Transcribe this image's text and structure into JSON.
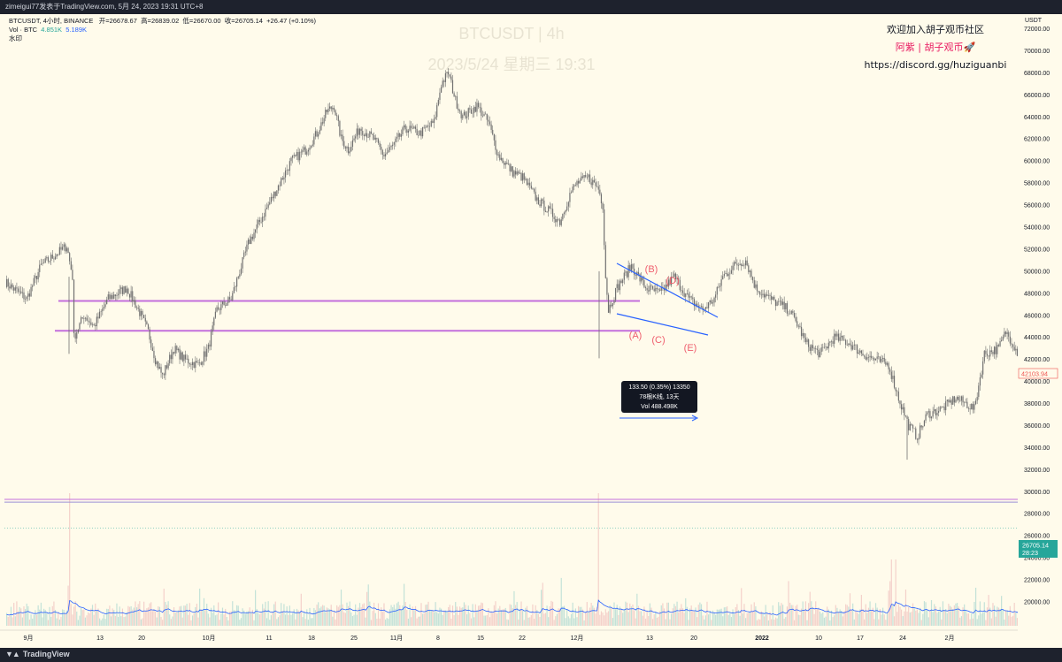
{
  "header": {
    "author_line": "zimeigui77发表于TradingView.com,   5月 24, 2023 19:31 UTC+8"
  },
  "footer": {
    "brand": "TradingView"
  },
  "legend": {
    "symbol_line": "BTCUSDT, 4小时, BINANCE",
    "open_label": "开=",
    "open": "26678.67",
    "high_label": "高=",
    "high": "26839.02",
    "low_label": "低=",
    "low": "26670.00",
    "close_label": "收=",
    "close": "26705.14",
    "change": "+26.47 (+0.10%)",
    "vol_label": "Vol · BTC",
    "vol_a": "4.851K",
    "vol_b": "5.189K",
    "watermark_label": "水印"
  },
  "watermark": {
    "line1": "BTCUSDT | 4h",
    "line2": "2023/5/24 星期三 19:31"
  },
  "promo": {
    "line1": "欢迎加入胡子观币社区",
    "line2": "阿紫 | 胡子观币🚀",
    "line3": "https://discord.gg/huziguanbi"
  },
  "annotations": [
    "(A)",
    "(B)",
    "(C)",
    "(D)",
    "(E)"
  ],
  "tooltip": {
    "line1": "133.50 (0.35%) 13350",
    "line2": "78根K线, 13天",
    "line3": "Vol 488.498K"
  },
  "price_tags": {
    "marked": "42103.94",
    "last": "26705.14",
    "countdown": "28:23"
  },
  "colors": {
    "background": "#fffbeb",
    "candles": "#707070",
    "level_lines": "#c36fdc",
    "wedge_lines": "#2962ff",
    "wave_labels": "#ef5f6e",
    "volume_ma": "#2962ff",
    "last_price": "#26a69a",
    "marked_price": "#ef5350"
  },
  "chart_data": {
    "type": "candlestick",
    "currency": "USDT",
    "y_range": [
      19500,
      73500
    ],
    "y_ticks": [
      72000,
      70000,
      68000,
      66000,
      64000,
      62000,
      60000,
      58000,
      56000,
      54000,
      52000,
      50000,
      48000,
      46000,
      44000,
      42000,
      40000,
      38000,
      36000,
      34000,
      32000,
      30000,
      28000,
      26000,
      24000,
      22000,
      20000
    ],
    "x_ticks": [
      "9月",
      "13",
      "20",
      "10月",
      "11",
      "18",
      "25",
      "11月",
      "8",
      "15",
      "22",
      "12月",
      "13",
      "20",
      "2022",
      "10",
      "17",
      "24",
      "2月"
    ],
    "price_path": [
      [
        0,
        49000
      ],
      [
        15,
        47500
      ],
      [
        25,
        50500
      ],
      [
        35,
        51500
      ],
      [
        43,
        52300
      ],
      [
        47,
        49500
      ],
      [
        48,
        44000
      ],
      [
        55,
        46000
      ],
      [
        62,
        45000
      ],
      [
        72,
        47500
      ],
      [
        85,
        48500
      ],
      [
        95,
        46000
      ],
      [
        100,
        44500
      ],
      [
        105,
        42000
      ],
      [
        110,
        40500
      ],
      [
        118,
        43000
      ],
      [
        125,
        42000
      ],
      [
        135,
        41500
      ],
      [
        142,
        43000
      ],
      [
        148,
        46500
      ],
      [
        158,
        47500
      ],
      [
        170,
        52500
      ],
      [
        180,
        55000
      ],
      [
        190,
        57500
      ],
      [
        200,
        60000
      ],
      [
        210,
        61000
      ],
      [
        218,
        62500
      ],
      [
        225,
        64500
      ],
      [
        230,
        65000
      ],
      [
        235,
        62000
      ],
      [
        240,
        61000
      ],
      [
        248,
        63000
      ],
      [
        258,
        62000
      ],
      [
        265,
        60500
      ],
      [
        272,
        61500
      ],
      [
        280,
        63000
      ],
      [
        290,
        62500
      ],
      [
        300,
        63500
      ],
      [
        305,
        67000
      ],
      [
        310,
        68000
      ],
      [
        315,
        65500
      ],
      [
        320,
        64000
      ],
      [
        330,
        65000
      ],
      [
        338,
        63500
      ],
      [
        345,
        60500
      ],
      [
        355,
        59000
      ],
      [
        362,
        58500
      ],
      [
        372,
        56500
      ],
      [
        380,
        55500
      ],
      [
        388,
        54500
      ],
      [
        395,
        57000
      ],
      [
        400,
        58000
      ],
      [
        408,
        58500
      ],
      [
        415,
        57500
      ],
      [
        418,
        56000
      ],
      [
        420,
        49500
      ],
      [
        422,
        46500
      ],
      [
        428,
        48500
      ],
      [
        438,
        50500
      ],
      [
        448,
        48500
      ],
      [
        458,
        48000
      ],
      [
        468,
        49500
      ],
      [
        478,
        47500
      ],
      [
        488,
        46500
      ],
      [
        496,
        47500
      ],
      [
        502,
        49500
      ],
      [
        510,
        50500
      ],
      [
        518,
        51000
      ],
      [
        525,
        48500
      ],
      [
        535,
        47500
      ],
      [
        548,
        46500
      ],
      [
        555,
        45000
      ],
      [
        560,
        43500
      ],
      [
        570,
        42500
      ],
      [
        580,
        44000
      ],
      [
        590,
        43500
      ],
      [
        600,
        42500
      ],
      [
        608,
        42000
      ],
      [
        618,
        41500
      ],
      [
        625,
        38500
      ],
      [
        632,
        36000
      ],
      [
        638,
        35000
      ],
      [
        645,
        37000
      ],
      [
        655,
        37500
      ],
      [
        665,
        38500
      ],
      [
        672,
        38000
      ],
      [
        678,
        37500
      ],
      [
        685,
        42500
      ],
      [
        695,
        43000
      ],
      [
        700,
        44500
      ],
      [
        705,
        43500
      ],
      [
        710,
        42103.94
      ]
    ],
    "horizontal_levels": [
      47300,
      44600,
      29300,
      29050
    ],
    "wedge_lines": [
      {
        "from": [
          "12月8日",
          52000
        ],
        "to": [
          "12月23日",
          47500
        ]
      },
      {
        "from": [
          "12月8日",
          47300
        ],
        "to": [
          "12月23日",
          45500
        ]
      }
    ],
    "price_marker": 42103.94,
    "last_price": 26705.14
  }
}
